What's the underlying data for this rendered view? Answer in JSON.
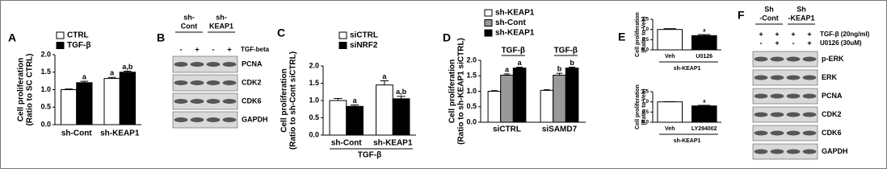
{
  "chart_data": [
    {
      "type": "bar",
      "panel": "A",
      "ylabel": [
        "Cell proliferation",
        "(Ratio to SC CTRL)"
      ],
      "categories": [
        "sh-Cont",
        "sh-KEAP1"
      ],
      "series": [
        {
          "name": "CTRL",
          "color": "#ffffff",
          "values": [
            1.0,
            1.32
          ],
          "errors": [
            0.02,
            0.03
          ],
          "annotations": [
            null,
            "a"
          ]
        },
        {
          "name": "TGF-β",
          "color": "#000000",
          "values": [
            1.2,
            1.5
          ],
          "errors": [
            0.04,
            0.03
          ],
          "annotations": [
            "a",
            "a,b"
          ]
        }
      ],
      "ylim": [
        0,
        2
      ],
      "yticks": [
        {
          "value": 0,
          "label": "0.0"
        },
        0.5,
        {
          "value": 1,
          "label": "1.0"
        },
        1.5,
        {
          "value": 2,
          "label": "2.0"
        }
      ]
    },
    {
      "type": "bar",
      "panel": "C",
      "ylabel": [
        "Cell proliferation",
        "(Ratio to sh-Cont siCTRL)"
      ],
      "categories": [
        "sh-Cont",
        "sh-KEAP1"
      ],
      "xlabel": "TGF-β",
      "series": [
        {
          "name": "siCTRL",
          "color": "#ffffff",
          "values": [
            1.0,
            1.45
          ],
          "errors": [
            0.06,
            0.12
          ],
          "annotations": [
            null,
            "a"
          ]
        },
        {
          "name": "siNRF2",
          "color": "#000000",
          "values": [
            0.83,
            1.05
          ],
          "errors": [
            0.04,
            0.07
          ],
          "annotations": [
            "a",
            "a,b"
          ]
        }
      ],
      "ylim": [
        0,
        2
      ],
      "yticks": [
        {
          "value": 0,
          "label": "0.0"
        },
        0.5,
        {
          "value": 1,
          "label": "1.0"
        },
        1.5,
        {
          "value": 2,
          "label": "2.0"
        }
      ]
    },
    {
      "type": "bar",
      "panel": "D",
      "ylabel": [
        "Cell proliferation",
        "(Ratio to sh-KEAP1 siCTRL)"
      ],
      "categories": [
        "siCTRL",
        "siSAMD7"
      ],
      "group_labels": [
        "TGF-β",
        "TGF-β"
      ],
      "series": [
        {
          "name": "sh-KEAP1",
          "color": "#ffffff",
          "values": [
            1.0,
            1.03
          ],
          "errors": [
            0.02,
            0.02
          ],
          "annotations": [
            null,
            null
          ]
        },
        {
          "name": "sh-Cont",
          "color": "#999999",
          "values": [
            1.52,
            1.52
          ],
          "errors": [
            0.04,
            0.06
          ],
          "annotations": [
            "a",
            "b"
          ]
        },
        {
          "name": "sh-KEAP1",
          "color": "#000000",
          "values": [
            1.75,
            1.75
          ],
          "errors": [
            0.03,
            0.03
          ],
          "annotations": [
            "a",
            "b"
          ]
        }
      ],
      "ylim": [
        0,
        2
      ],
      "yticks": [
        {
          "value": 0,
          "label": "0.0"
        },
        0.5,
        {
          "value": 1,
          "label": "1.0"
        },
        1.5,
        {
          "value": 2,
          "label": "2.0"
        }
      ]
    },
    {
      "type": "bar",
      "panel": "E",
      "ylabel": [
        "Cell proliferation",
        "(Ratio to Veh)"
      ],
      "categories": [
        "Veh",
        "U0126"
      ],
      "xlabel": "sh-KEAP1",
      "values": [
        1.0,
        0.7
      ],
      "errors": [
        0.04,
        0.05
      ],
      "annotations": [
        null,
        "a"
      ],
      "colors": [
        "#ffffff",
        "#000000"
      ],
      "ylim": [
        0,
        1.5
      ],
      "yticks": [
        {
          "value": 0,
          "label": "0.0"
        },
        0.5,
        {
          "value": 1,
          "label": "1.0"
        },
        1.5
      ]
    },
    {
      "type": "bar",
      "ylabel": [
        "Cell proliferation",
        "(Ratio to Veh)"
      ],
      "categories": [
        "Veh",
        "LY294002"
      ],
      "xlabel": "sh-KEAP1",
      "values": [
        1.0,
        0.8
      ],
      "errors": [
        0.01,
        0.03
      ],
      "annotations": [
        null,
        "a"
      ],
      "colors": [
        "#ffffff",
        "#000000"
      ],
      "ylim": [
        0,
        1.5
      ],
      "yticks": [
        {
          "value": 0,
          "label": "0.0"
        },
        0.5,
        {
          "value": 1,
          "label": "1.0"
        },
        1.5
      ]
    }
  ],
  "blots": [
    {
      "panel": "B",
      "groups": [
        [
          "sh-",
          "Cont"
        ],
        [
          "sh-",
          "KEAP1"
        ]
      ],
      "treatments": [
        {
          "label": "TGF-beta",
          "signs": [
            "-",
            "+",
            "-",
            "+"
          ]
        }
      ],
      "bands": [
        "PCNA",
        "CDK2",
        "CDK6",
        "GAPDH"
      ]
    },
    {
      "panel": "F",
      "groups": [
        [
          "Sh",
          "-Cont"
        ],
        [
          "Sh",
          "-KEAP1"
        ]
      ],
      "treatments": [
        {
          "label": "TGF-β (20ng/ml)",
          "signs": [
            "+",
            "+",
            "+",
            "+"
          ]
        },
        {
          "label": "U0126 (30uM)",
          "signs": [
            "-",
            "+",
            "-",
            "+"
          ]
        }
      ],
      "bands": [
        "p-ERK",
        "ERK",
        "PCNA",
        "CDK2",
        "CDK6",
        "GAPDH"
      ]
    }
  ]
}
